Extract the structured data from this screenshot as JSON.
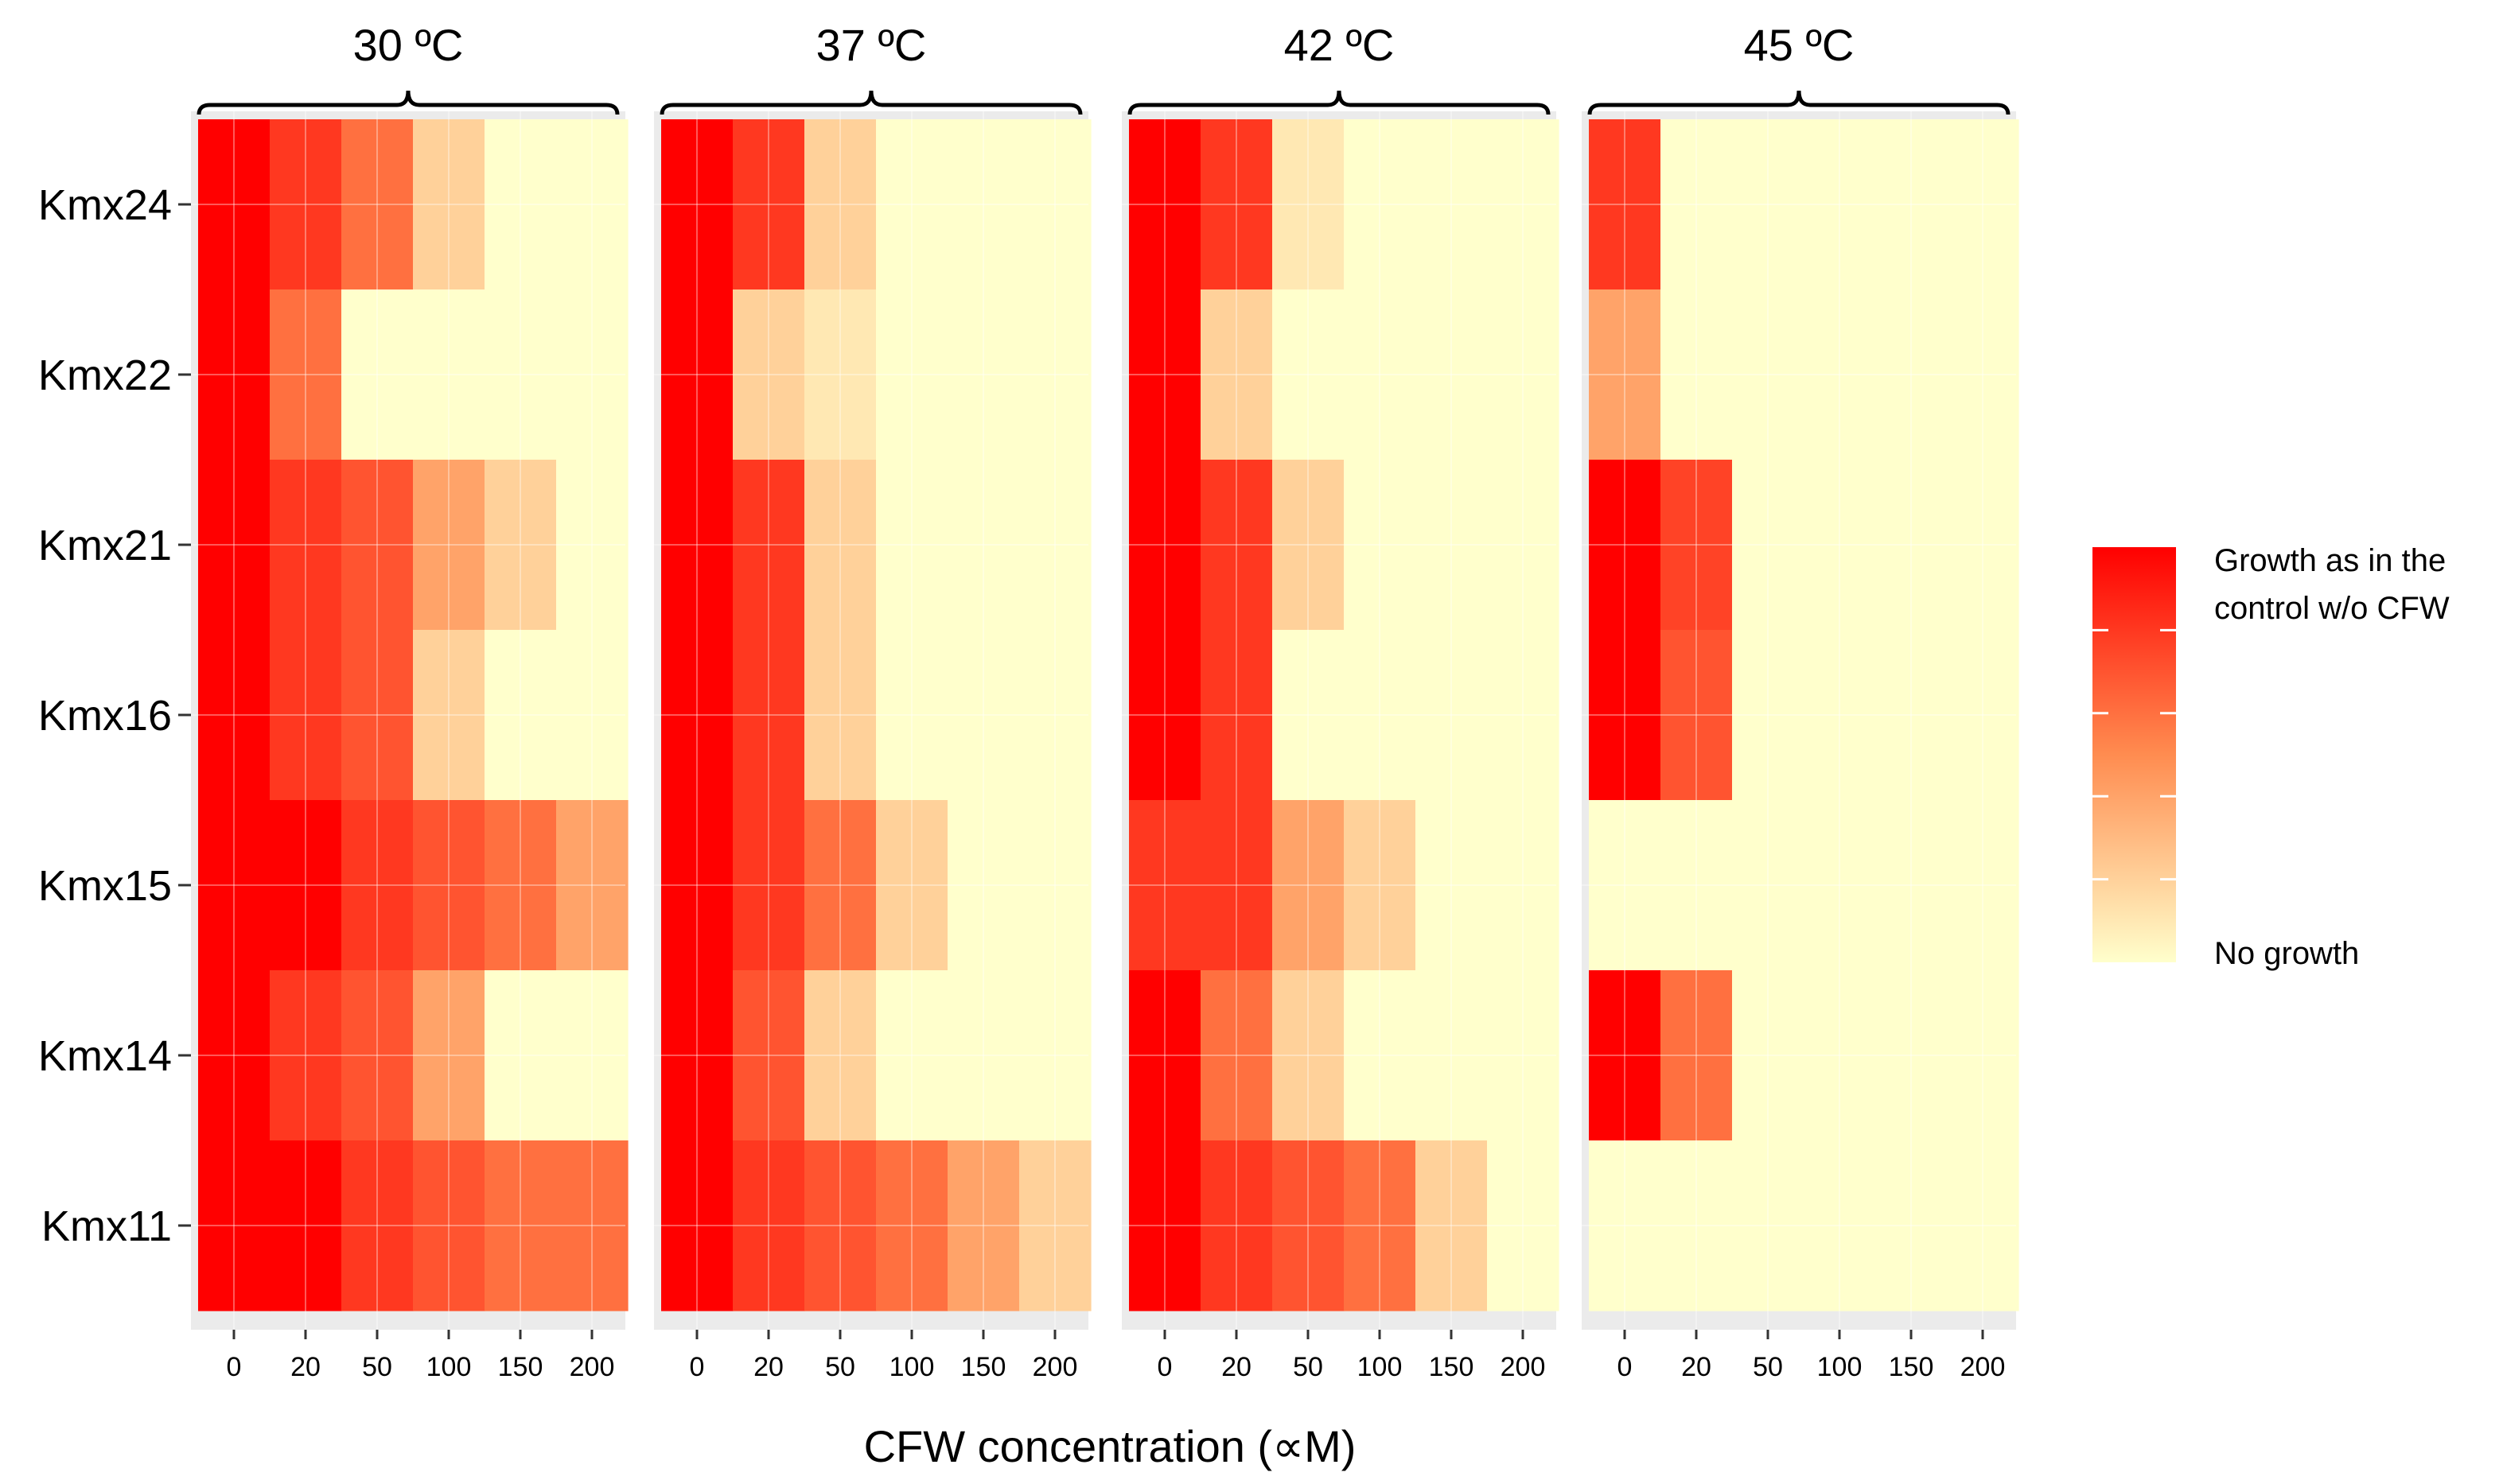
{
  "chart_data": {
    "type": "heatmap",
    "xlabel": "CFW concentration (∝M)",
    "ylabel": "",
    "columns": [
      "0",
      "20",
      "50",
      "100",
      "150",
      "200"
    ],
    "rows": [
      "Kmx24",
      "Kmx22",
      "Kmx21",
      "Kmx16",
      "Kmx15",
      "Kmx14",
      "Kmx11"
    ],
    "value_range": [
      0,
      5
    ],
    "panels": [
      {
        "title": "30 ºC",
        "values": [
          [
            5,
            4,
            3,
            1,
            0,
            0
          ],
          [
            5,
            3,
            0,
            0,
            0,
            0
          ],
          [
            5,
            4,
            3.5,
            2,
            1,
            0
          ],
          [
            5,
            4,
            3.5,
            1,
            0,
            0
          ],
          [
            5,
            5,
            4,
            3.5,
            3,
            2
          ],
          [
            5,
            4,
            3.5,
            2,
            0,
            0
          ],
          [
            5,
            5,
            4,
            3.5,
            3,
            3
          ]
        ]
      },
      {
        "title": "37 ºC",
        "values": [
          [
            5,
            4,
            1,
            0,
            0,
            0
          ],
          [
            5,
            1,
            0.5,
            0,
            0,
            0
          ],
          [
            5,
            4,
            1,
            0,
            0,
            0
          ],
          [
            5,
            4,
            1,
            0,
            0,
            0
          ],
          [
            5,
            4,
            3,
            1,
            0,
            0
          ],
          [
            5,
            3.5,
            1,
            0,
            0,
            0
          ],
          [
            5,
            4,
            3.5,
            3,
            2,
            1
          ]
        ]
      },
      {
        "title": "42 ºC",
        "values": [
          [
            5,
            4,
            0.5,
            0,
            0,
            0
          ],
          [
            5,
            1,
            0,
            0,
            0,
            0
          ],
          [
            5,
            4,
            1,
            0,
            0,
            0
          ],
          [
            5,
            4,
            0,
            0,
            0,
            0
          ],
          [
            4,
            4,
            2,
            1,
            0,
            0
          ],
          [
            5,
            3,
            1,
            0,
            0,
            0
          ],
          [
            5,
            4,
            3.5,
            3,
            1,
            0
          ]
        ]
      },
      {
        "title": "45 ºC",
        "values": [
          [
            4,
            0,
            0,
            0,
            0,
            0
          ],
          [
            2,
            0,
            0,
            0,
            0,
            0
          ],
          [
            5,
            3.8,
            0,
            0,
            0,
            0
          ],
          [
            5,
            3.5,
            0,
            0,
            0,
            0
          ],
          [
            0,
            0,
            0,
            0,
            0,
            0
          ],
          [
            5,
            3,
            0,
            0,
            0,
            0
          ],
          [
            0,
            0,
            0,
            0,
            0,
            0
          ]
        ]
      }
    ],
    "legend": {
      "high_label_line1": "Growth as in the",
      "high_label_line2": "control w/o CFW",
      "low_label": "No growth"
    },
    "colors": {
      "high": "#FF0000",
      "mid": "#FF8C50",
      "low": "#FFFFCC",
      "panel_background": "#EBEBEB",
      "grid": "#FFFFFF"
    }
  }
}
